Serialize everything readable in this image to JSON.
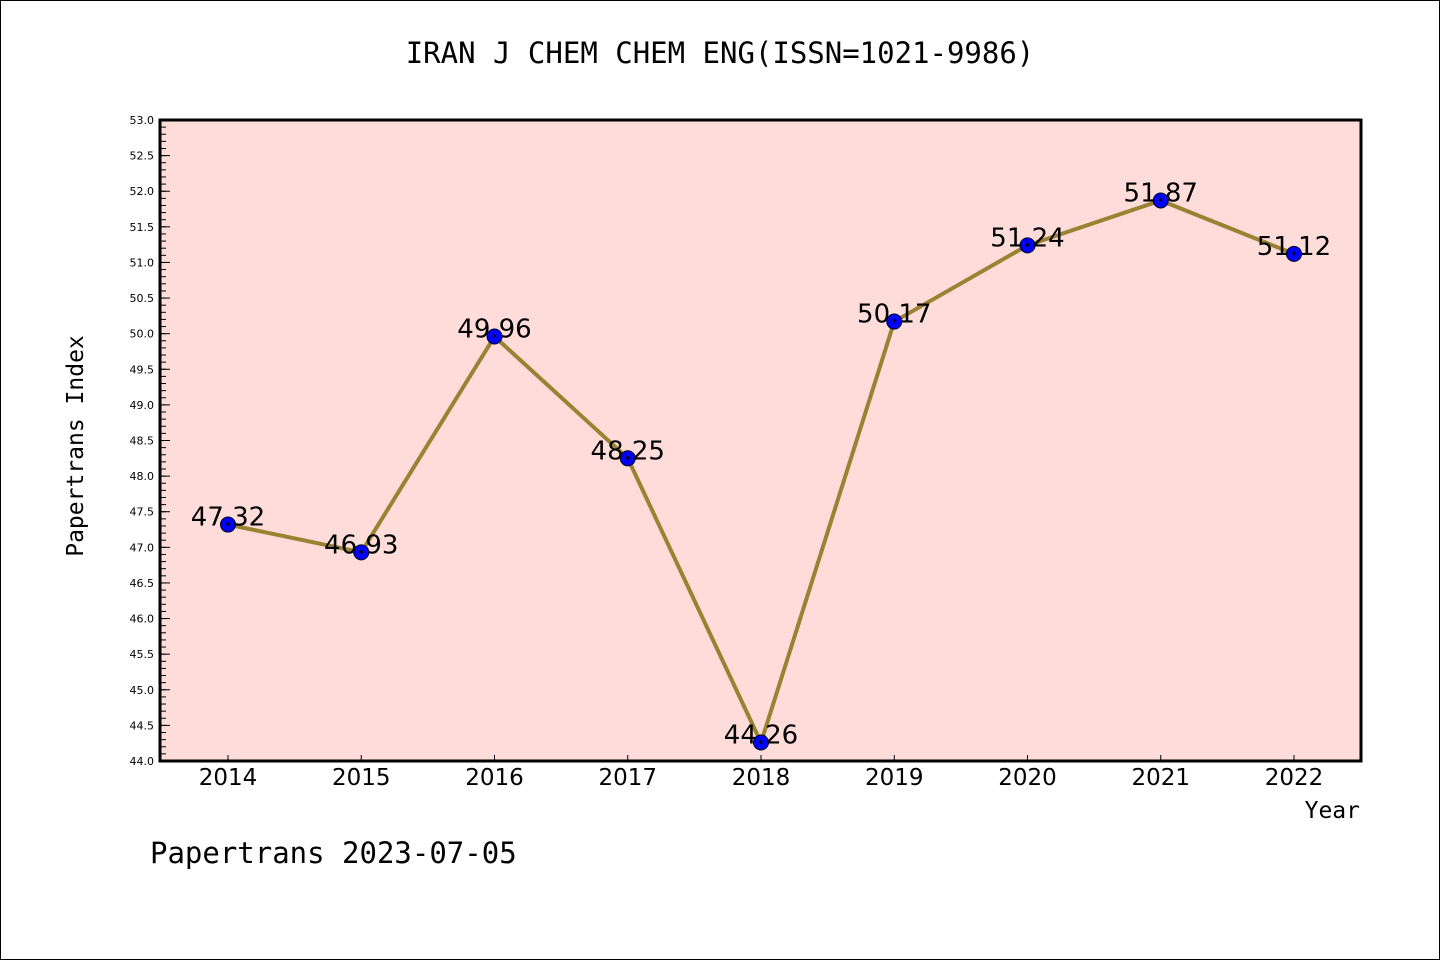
{
  "chart_data": {
    "type": "line",
    "title": "IRAN J CHEM CHEM ENG(ISSN=1021-9986)",
    "xlabel": "Year",
    "ylabel": "Papertrans Index",
    "categories": [
      "2014",
      "2015",
      "2016",
      "2017",
      "2018",
      "2019",
      "2020",
      "2021",
      "2022"
    ],
    "values": [
      47.32,
      46.93,
      49.96,
      48.25,
      44.26,
      50.17,
      51.24,
      51.87,
      51.12
    ],
    "data_labels": [
      "47.32",
      "46.93",
      "49.96",
      "48.25",
      "44.26",
      "50.17",
      "51.24",
      "51.87",
      "51.12"
    ],
    "ylim": [
      44.0,
      53.0
    ],
    "yticks": [
      "44.0",
      "44.5",
      "45.0",
      "45.5",
      "46.0",
      "46.5",
      "47.0",
      "47.5",
      "48.0",
      "48.5",
      "49.0",
      "49.5",
      "50.0",
      "50.5",
      "51.0",
      "51.5",
      "52.0",
      "52.5",
      "53.0"
    ],
    "grid": false,
    "plot_background": "#fddcd9",
    "line_color": "#9a8233",
    "marker_color": "#0000ff"
  },
  "footer": "Papertrans 2023-07-05"
}
